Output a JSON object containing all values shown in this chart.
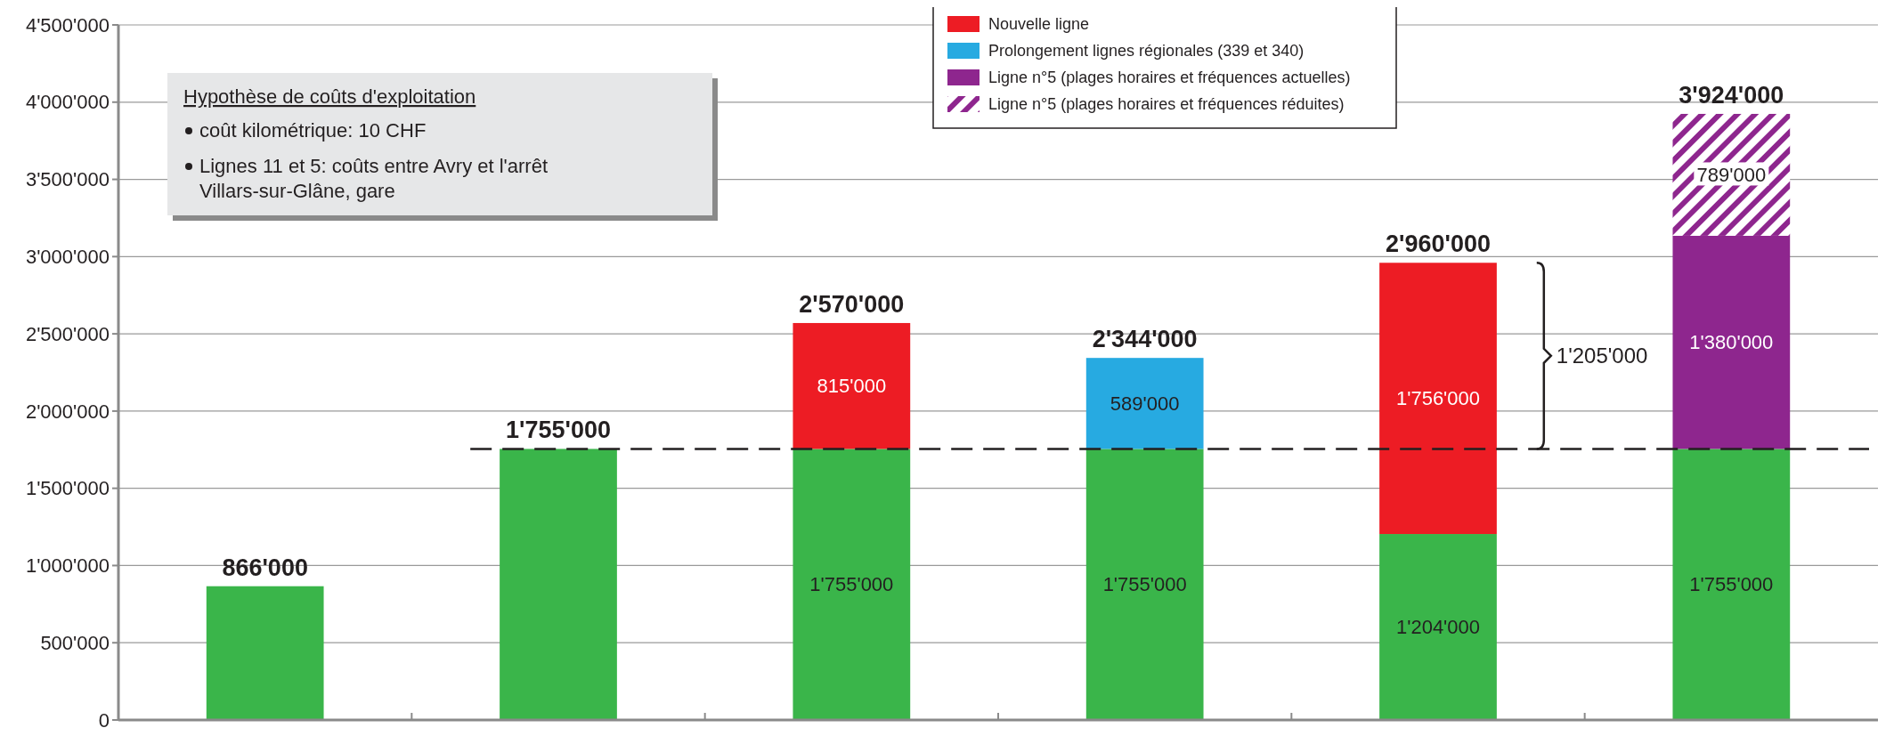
{
  "chart_data": {
    "type": "bar",
    "stacked": true,
    "categories": [
      null,
      null,
      null,
      null,
      null,
      null
    ],
    "series": [
      {
        "color": "#3ab54a",
        "values": [
          866000,
          1755000,
          1755000,
          1755000,
          1204000,
          1755000
        ],
        "value_labels": [
          null,
          null,
          "1'755'000",
          "1'755'000",
          "1'204'000",
          "1'755'000"
        ]
      },
      {
        "name": "Nouvelle ligne",
        "color": "#ed1c24",
        "values": [
          null,
          null,
          815000,
          null,
          1756000,
          null
        ],
        "value_labels": [
          null,
          null,
          "815'000",
          null,
          "1'756'000",
          null
        ]
      },
      {
        "name": "Prolongement lignes régionales (339 et 340)",
        "color": "#27aae1",
        "values": [
          null,
          null,
          null,
          589000,
          null,
          null
        ],
        "value_labels": [
          null,
          null,
          null,
          "589'000",
          null,
          null
        ]
      },
      {
        "name": "Ligne n°5 (plages horaires et fréquences actuelles)",
        "color": "#8e268e",
        "values": [
          null,
          null,
          null,
          null,
          null,
          1380000
        ],
        "value_labels": [
          null,
          null,
          null,
          null,
          null,
          "1'380'000"
        ]
      },
      {
        "name": "Ligne n°5 (plages horaires et fréquences réduites)",
        "color": "#8e268e",
        "values": [
          null,
          null,
          null,
          null,
          null,
          789000
        ],
        "value_labels": [
          null,
          null,
          null,
          null,
          null,
          "789'000"
        ]
      }
    ],
    "totals": [
      "866'000",
      "1'755'000",
      "2'570'000",
      "2'344'000",
      "2'960'000",
      "3'924'000"
    ],
    "ylim": [
      0,
      4500000
    ],
    "yticks": [
      {
        "value": 0,
        "label": "0"
      },
      {
        "value": 500000,
        "label": "500'000"
      },
      {
        "value": 1000000,
        "label": "1'000'000"
      },
      {
        "value": 1500000,
        "label": "1'500'000"
      },
      {
        "value": 2000000,
        "label": "2'000'000"
      },
      {
        "value": 2500000,
        "label": "2'500'000"
      },
      {
        "value": 3000000,
        "label": "3'000'000"
      },
      {
        "value": 3500000,
        "label": "3'500'000"
      },
      {
        "value": 4000000,
        "label": "4'000'000"
      },
      {
        "value": 4500000,
        "label": "4'500'000"
      }
    ],
    "grid": "y",
    "legend": "top",
    "tick_labels": "y",
    "ref_lines": [
      {
        "axis": "y",
        "value": 1755000,
        "line_style": "dashed",
        "color": "#231f20"
      }
    ],
    "annotations": [
      "1'205'000",
      "Hypothèse de coûts d'exploitation",
      "coût kilométrique: 10 CHF",
      "Lignes 11 et 5: coûts entre Avry et l'arrêt Villars-sur-Glâne, gare"
    ]
  }
}
